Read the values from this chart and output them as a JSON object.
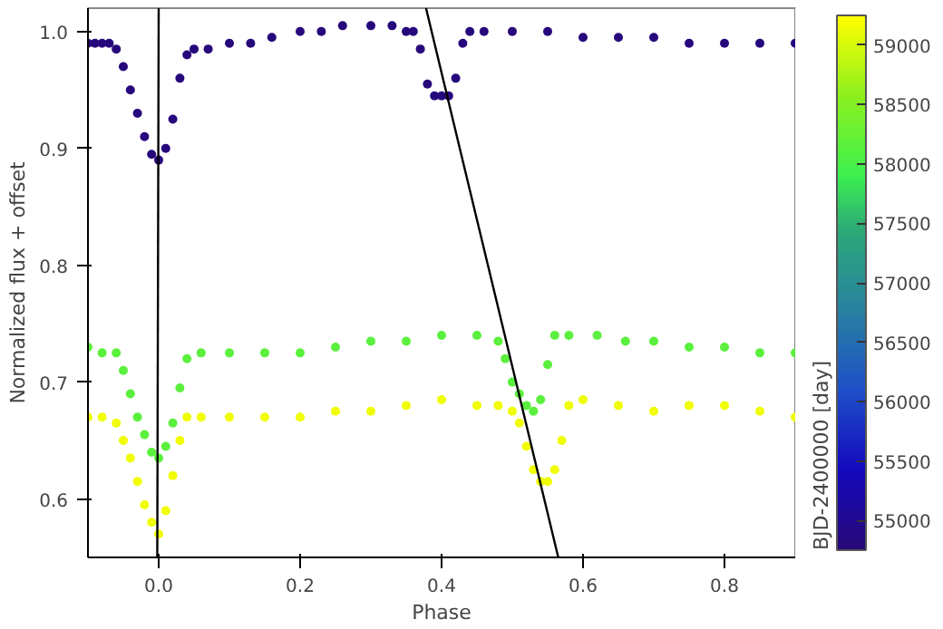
{
  "chart_data": {
    "type": "scatter",
    "xlabel": "Phase",
    "ylabel": "Normalized flux + offset",
    "clabel": "BJD-2400000 [day]",
    "xlim": [
      -0.1,
      0.9
    ],
    "ylim": [
      0.55,
      1.02
    ],
    "xticks": [
      {
        "value": 0,
        "label": "0.0"
      },
      0.2,
      0.4,
      0.6,
      0.8
    ],
    "yticks": [
      0.6,
      0.7,
      0.8,
      0.9,
      {
        "value": 1.0,
        "label": "1.0"
      }
    ],
    "clim": [
      54750,
      59250
    ],
    "cticks": [
      55000,
      55500,
      56000,
      56500,
      57000,
      57500,
      58000,
      58500,
      59000
    ],
    "grid": false,
    "marker": "circle",
    "series": [
      {
        "x": [
          -0.1,
          -0.09,
          -0.08,
          -0.07,
          -0.06,
          -0.05,
          -0.04,
          -0.03,
          -0.02,
          -0.01,
          0.0,
          0.01,
          0.02,
          0.03,
          0.04,
          0.05,
          0.07,
          0.1,
          0.13,
          0.16,
          0.2,
          0.23,
          0.26,
          0.3,
          0.33,
          0.35,
          0.36,
          0.37,
          0.38,
          0.39,
          0.4,
          0.41,
          0.42,
          0.43,
          0.44,
          0.46,
          0.5,
          0.55,
          0.6,
          0.65,
          0.7,
          0.75,
          0.8,
          0.85,
          0.9
        ],
        "values": [
          0.99,
          0.99,
          0.99,
          0.99,
          0.985,
          0.97,
          0.95,
          0.93,
          0.91,
          0.895,
          0.89,
          0.9,
          0.925,
          0.96,
          0.98,
          0.985,
          0.985,
          0.99,
          0.99,
          0.995,
          1.0,
          1.0,
          1.005,
          1.005,
          1.005,
          1.0,
          1.0,
          0.985,
          0.955,
          0.945,
          0.945,
          0.945,
          0.96,
          0.99,
          1.0,
          1.0,
          1.0,
          1.0,
          0.995,
          0.995,
          0.995,
          0.99,
          0.99,
          0.99,
          0.99
        ],
        "cvalues": [
          54800,
          54800,
          54800,
          54800,
          54800,
          54800,
          54800,
          54800,
          54800,
          54800,
          54800,
          54800,
          54800,
          54800,
          54800,
          54800,
          54800,
          54800,
          54800,
          54800,
          54800,
          54800,
          54800,
          54800,
          54800,
          54800,
          54800,
          54800,
          54800,
          54800,
          54800,
          54800,
          54800,
          54800,
          54800,
          54800,
          54800,
          54800,
          54800,
          54800,
          54800,
          54800,
          54800,
          54800,
          54800
        ]
      },
      {
        "x": [
          -0.1,
          -0.08,
          -0.06,
          -0.05,
          -0.04,
          -0.03,
          -0.02,
          -0.01,
          0.0,
          0.01,
          0.02,
          0.03,
          0.04,
          0.06,
          0.1,
          0.15,
          0.2,
          0.25,
          0.3,
          0.35,
          0.4,
          0.45,
          0.48,
          0.49,
          0.5,
          0.51,
          0.52,
          0.53,
          0.54,
          0.55,
          0.56,
          0.58,
          0.62,
          0.66,
          0.7,
          0.75,
          0.8,
          0.85,
          0.9
        ],
        "values": [
          0.73,
          0.725,
          0.725,
          0.71,
          0.69,
          0.67,
          0.655,
          0.64,
          0.635,
          0.645,
          0.665,
          0.695,
          0.72,
          0.725,
          0.725,
          0.725,
          0.725,
          0.73,
          0.735,
          0.735,
          0.74,
          0.74,
          0.735,
          0.72,
          0.7,
          0.69,
          0.68,
          0.675,
          0.685,
          0.715,
          0.74,
          0.74,
          0.74,
          0.735,
          0.735,
          0.73,
          0.73,
          0.725,
          0.725
        ],
        "cvalues": [
          58150,
          58150,
          58150,
          58150,
          58150,
          58150,
          58150,
          58150,
          58150,
          58150,
          58150,
          58150,
          58150,
          58150,
          58150,
          58150,
          58150,
          58150,
          58150,
          58150,
          58150,
          58150,
          58150,
          58150,
          58150,
          58150,
          58150,
          58150,
          58150,
          58150,
          58150,
          58150,
          58150,
          58150,
          58150,
          58150,
          58150,
          58150,
          58150
        ]
      },
      {
        "x": [
          -0.1,
          -0.08,
          -0.06,
          -0.05,
          -0.04,
          -0.03,
          -0.02,
          -0.01,
          0.0,
          0.01,
          0.02,
          0.03,
          0.04,
          0.06,
          0.1,
          0.15,
          0.2,
          0.25,
          0.3,
          0.35,
          0.4,
          0.45,
          0.48,
          0.5,
          0.51,
          0.52,
          0.53,
          0.54,
          0.55,
          0.56,
          0.57,
          0.58,
          0.6,
          0.65,
          0.7,
          0.75,
          0.8,
          0.85,
          0.9
        ],
        "values": [
          0.67,
          0.67,
          0.665,
          0.65,
          0.635,
          0.615,
          0.595,
          0.58,
          0.57,
          0.59,
          0.62,
          0.65,
          0.67,
          0.67,
          0.67,
          0.67,
          0.67,
          0.675,
          0.675,
          0.68,
          0.685,
          0.68,
          0.68,
          0.675,
          0.665,
          0.645,
          0.625,
          0.615,
          0.615,
          0.625,
          0.65,
          0.68,
          0.685,
          0.68,
          0.675,
          0.68,
          0.68,
          0.675,
          0.67
        ],
        "cvalues": [
          59150,
          59150,
          59150,
          59150,
          59150,
          59150,
          59150,
          59150,
          59150,
          59150,
          59150,
          59150,
          59150,
          59150,
          59150,
          59150,
          59150,
          59150,
          59150,
          59150,
          59150,
          59150,
          59150,
          59150,
          59150,
          59150,
          59150,
          59150,
          59150,
          59150,
          59150,
          59150,
          59150,
          59150,
          59150,
          59150,
          59150,
          59150,
          59150
        ]
      },
      {
        "type": "line",
        "color": "#000000",
        "marker": "none",
        "x": [
          0.0,
          -0.002
        ],
        "values": [
          1.02,
          0.55
        ]
      },
      {
        "type": "line",
        "color": "#000000",
        "marker": "none",
        "x": [
          0.378,
          0.565
        ],
        "values": [
          1.02,
          0.55
        ]
      }
    ]
  }
}
